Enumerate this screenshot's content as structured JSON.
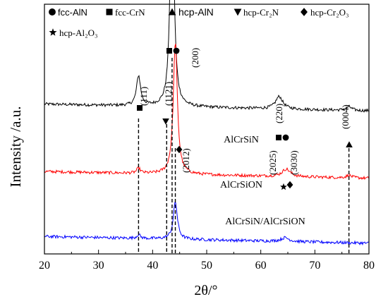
{
  "chart_data": {
    "type": "line",
    "title": "",
    "xlabel": "2θ/°",
    "ylabel": "Intensity /a.u.",
    "xlim": [
      20,
      80
    ],
    "x_ticks": [
      "20",
      "30",
      "40",
      "50",
      "60",
      "70",
      "80"
    ],
    "y_ticks_labeled": false,
    "grid": false,
    "series": [
      {
        "name": "AlCrSiN",
        "color": "#000000",
        "baseline": 0.6,
        "peaks": [
          {
            "x": 37.4,
            "h": 0.12,
            "w": 0.45
          },
          {
            "x": 43.6,
            "h": 0.98,
            "w": 0.4
          },
          {
            "x": 63.4,
            "h": 0.05,
            "w": 0.8
          },
          {
            "x": 76.3,
            "h": 0.015,
            "w": 0.6
          }
        ]
      },
      {
        "name": "AlCrSiON",
        "color": "#ff0000",
        "baseline": 0.33,
        "peaks": [
          {
            "x": 37.4,
            "h": 0.02,
            "w": 0.4
          },
          {
            "x": 44.2,
            "h": 0.53,
            "w": 0.45
          },
          {
            "x": 64.7,
            "h": 0.03,
            "w": 0.9
          },
          {
            "x": 76.3,
            "h": 0.01,
            "w": 0.6
          }
        ]
      },
      {
        "name": "AlCrSiN/AlCrSiON",
        "color": "#0000ff",
        "baseline": 0.07,
        "peaks": [
          {
            "x": 37.4,
            "h": 0.015,
            "w": 0.4
          },
          {
            "x": 44.2,
            "h": 0.15,
            "w": 0.45
          },
          {
            "x": 64.5,
            "h": 0.015,
            "w": 0.9
          }
        ]
      }
    ],
    "reference_lines_x": [
      37.4,
      42.6,
      43.6,
      44.2,
      76.3
    ],
    "series_labels": [
      {
        "text": "AlCrSiN",
        "series": 0
      },
      {
        "text": "AlCrSiON",
        "series": 1
      },
      {
        "text": "AlCrSiN/AlCrSiON",
        "series": 2
      }
    ],
    "legend": {
      "placement": "top-left",
      "entries": [
        {
          "marker": "circle",
          "label": "fcc-AlN"
        },
        {
          "marker": "square",
          "label": "fcc-CrN"
        },
        {
          "marker": "triangle-up",
          "label": "hcp-AlN"
        },
        {
          "marker": "triangle-down",
          "label": "hcp-Cr₂N"
        },
        {
          "marker": "diamond",
          "label": "hcp-Cr₂O₃"
        },
        {
          "marker": "star",
          "label": "hcp-Al₂O₃"
        }
      ]
    },
    "peak_annotations": [
      {
        "text": "(111)",
        "x": 37.4,
        "markers": [
          "square"
        ]
      },
      {
        "text": "(1121)",
        "x": 42.6,
        "markers": [
          "triangle-down"
        ]
      },
      {
        "text": "(200)",
        "x": 43.6,
        "markers": [
          "square",
          "circle"
        ]
      },
      {
        "text": "(2012)",
        "x": 44.5,
        "markers": [
          "diamond"
        ]
      },
      {
        "text": "(220)",
        "x": 63.5,
        "markers": [
          "square",
          "circle"
        ]
      },
      {
        "text": "(2025)",
        "x": 64.5,
        "markers": [
          "star"
        ]
      },
      {
        "text": "(3030)",
        "x": 65.3,
        "markers": [
          "diamond"
        ]
      },
      {
        "text": "(0004)",
        "x": 76.3,
        "markers": [
          "triangle-up"
        ]
      }
    ]
  }
}
